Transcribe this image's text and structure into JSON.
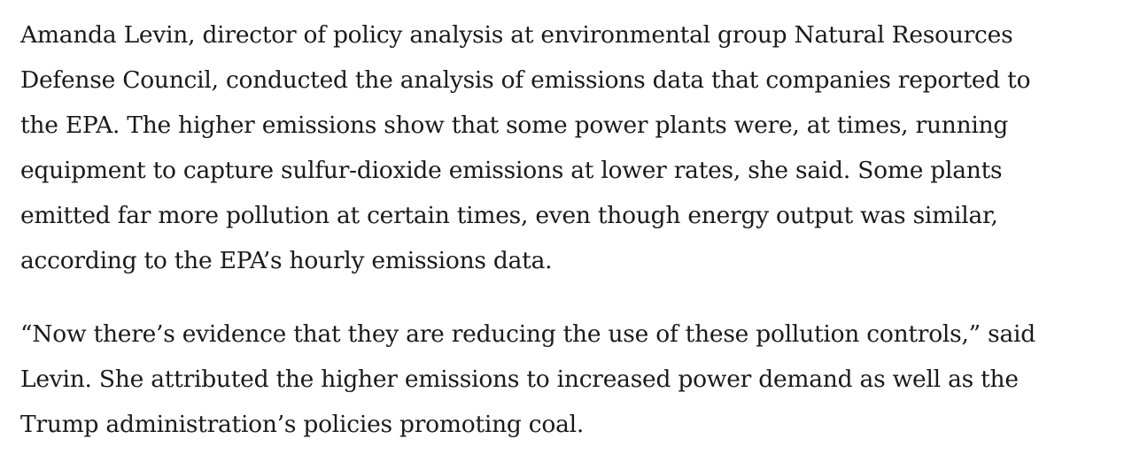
{
  "article": {
    "paragraphs": [
      {
        "lines": [
          "Amanda Levin, director of policy analysis at environmental group Natural Resources",
          "Defense Council, conducted the analysis of emissions data that companies reported to",
          "the EPA. The higher emissions show that some power plants were, at times, running",
          "equipment to capture sulfur-dioxide emissions at lower rates, she said. Some plants",
          "emitted far more pollution at certain times, even though energy output was similar,",
          "according to the EPA’s hourly emissions data."
        ]
      },
      {
        "lines": [
          "“Now there’s evidence that they are reducing the use of these pollution controls,” said",
          "Levin. She attributed the higher emissions to increased power demand as well as the",
          "Trump administration’s policies promoting coal."
        ]
      }
    ]
  }
}
